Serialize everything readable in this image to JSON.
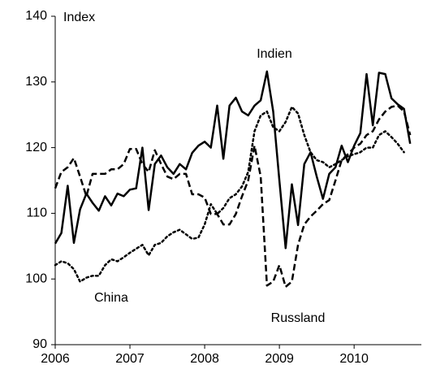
{
  "chart_data": {
    "type": "line",
    "y_label": "Index",
    "x": [
      2006,
      2006.083,
      2006.167,
      2006.25,
      2006.333,
      2006.417,
      2006.5,
      2006.583,
      2006.667,
      2006.75,
      2006.833,
      2006.917,
      2007,
      2007.083,
      2007.167,
      2007.25,
      2007.333,
      2007.417,
      2007.5,
      2007.583,
      2007.667,
      2007.75,
      2007.833,
      2007.917,
      2008,
      2008.083,
      2008.167,
      2008.25,
      2008.333,
      2008.417,
      2008.5,
      2008.583,
      2008.667,
      2008.75,
      2008.833,
      2008.917,
      2009,
      2009.083,
      2009.167,
      2009.25,
      2009.333,
      2009.417,
      2009.5,
      2009.583,
      2009.667,
      2009.75,
      2009.833,
      2009.917,
      2010,
      2010.083,
      2010.167,
      2010.25,
      2010.333,
      2010.417,
      2010.5,
      2010.583,
      2010.667,
      2010.75
    ],
    "series": [
      {
        "name": "Indien",
        "color": "#000000",
        "dash": "solid",
        "values": [
          105.4,
          107,
          114.2,
          105.5,
          110.6,
          113,
          111.6,
          110.4,
          112.6,
          111.2,
          113,
          112.6,
          113.6,
          113.8,
          120,
          110.5,
          117.5,
          118.8,
          117,
          116,
          117.5,
          116.7,
          119.2,
          120.3,
          120.9,
          120,
          126.4,
          118.3,
          126.4,
          127.6,
          125.5,
          124.9,
          126.4,
          127.2,
          131.6,
          125.5,
          115,
          104.7,
          114.4,
          108.2,
          117.5,
          119.3,
          115.6,
          112.2,
          116,
          117,
          120.3,
          117.8,
          120.3,
          122.2,
          131.2,
          123.4,
          131.4,
          131.2,
          127.5,
          126.6,
          125.9,
          120.6
        ]
      },
      {
        "name": "Russland",
        "color": "#000000",
        "dash": "dashed",
        "values": [
          113.8,
          116.3,
          117,
          118.4,
          115.6,
          112.6,
          116,
          116,
          116,
          116.7,
          116.7,
          117.5,
          119.8,
          119.8,
          117.5,
          116.3,
          119.6,
          117.5,
          115.6,
          115.2,
          116,
          116,
          112.9,
          112.9,
          112.4,
          109.9,
          109.9,
          108.3,
          108.3,
          109.9,
          112.6,
          115,
          120.3,
          115.6,
          99,
          99.6,
          102.1,
          98.8,
          99.6,
          105.2,
          108.3,
          109.5,
          110.4,
          111.4,
          112,
          115,
          118.1,
          119,
          120,
          120.6,
          121.9,
          122.5,
          124.3,
          125.5,
          126.2,
          126.4,
          125.5,
          121.9
        ]
      },
      {
        "name": "China",
        "color": "#000000",
        "dash": "dotted",
        "values": [
          102.1,
          102.7,
          102.4,
          101.5,
          99.6,
          100.2,
          100.5,
          100.5,
          102.1,
          103,
          102.7,
          103.3,
          104,
          104.6,
          105.2,
          103.6,
          105.2,
          105.5,
          106.5,
          107.1,
          107.5,
          106.8,
          106.1,
          106.3,
          108.3,
          111.4,
          109.9,
          110.8,
          112.3,
          112.9,
          114.1,
          116.3,
          122.5,
          124.9,
          125.5,
          123.1,
          122.5,
          123.9,
          126.2,
          125.2,
          121.9,
          119.3,
          118.1,
          117.8,
          117,
          117.5,
          118.1,
          118.7,
          119,
          119.3,
          120,
          120,
          121.9,
          122.5,
          121.6,
          120.6,
          119.3,
          null
        ]
      }
    ],
    "xlim": [
      2006,
      2010.9
    ],
    "xticks": [
      2006,
      2007,
      2008,
      2009,
      2010
    ],
    "ylim": [
      90,
      140
    ],
    "yticks": [
      90,
      100,
      110,
      120,
      130,
      140
    ],
    "grid": false
  }
}
